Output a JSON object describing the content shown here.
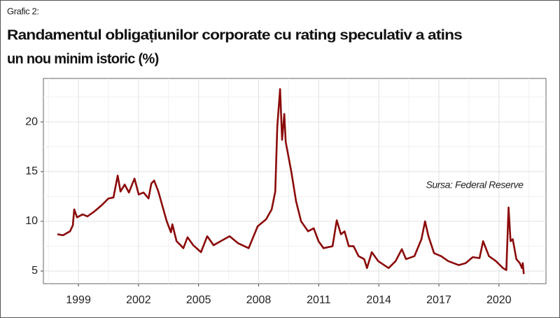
{
  "chart_data": {
    "type": "line",
    "kicker": "Grafic 2:",
    "title_lines": [
      "Randamentul obligațiunilor corporate cu rating speculativ a atins",
      "un nou minim istoric (%)"
    ],
    "annotation": "Sursa: Federal Reserve",
    "xlim": [
      1997.25,
      2022.35
    ],
    "ylim": [
      3.73,
      24.37
    ],
    "xticks": [
      1999,
      2002,
      2005,
      2008,
      2011,
      2014,
      2017,
      2020
    ],
    "minor_xticks": [
      1997.5,
      2000.5,
      2003.5,
      2006.5,
      2009.5,
      2012.5,
      2015.5,
      2018.5,
      2021.5
    ],
    "yticks": [
      5,
      10,
      15,
      20
    ],
    "minor_yticks": [
      7.5,
      12.5,
      17.5,
      22.5
    ],
    "grid": true,
    "series": [
      {
        "color": "#8b0a0a",
        "x": [
          1997.95,
          1998.23,
          1998.58,
          1998.72,
          1998.79,
          1998.93,
          1999.21,
          1999.45,
          1999.8,
          2000.15,
          2000.5,
          2000.75,
          2000.96,
          2001.1,
          2001.31,
          2001.52,
          2001.8,
          2002.01,
          2002.25,
          2002.5,
          2002.64,
          2002.78,
          2002.99,
          2003.2,
          2003.41,
          2003.62,
          2003.69,
          2003.9,
          2004.1,
          2004.24,
          2004.45,
          2004.73,
          2005.12,
          2005.43,
          2005.75,
          2006.1,
          2006.55,
          2006.97,
          2007.5,
          2007.95,
          2008.37,
          2008.65,
          2008.83,
          2008.93,
          2009.07,
          2009.17,
          2009.28,
          2009.35,
          2009.63,
          2009.87,
          2010.12,
          2010.47,
          2010.75,
          2010.99,
          2011.24,
          2011.69,
          2011.9,
          2012.11,
          2012.29,
          2012.5,
          2012.74,
          2012.99,
          2013.27,
          2013.41,
          2013.65,
          2013.97,
          2014.49,
          2014.84,
          2015.15,
          2015.36,
          2015.78,
          2016.13,
          2016.31,
          2016.48,
          2016.76,
          2017.11,
          2017.47,
          2017.99,
          2018.34,
          2018.69,
          2019.03,
          2019.21,
          2019.5,
          2019.85,
          2020.2,
          2020.37,
          2020.48,
          2020.58,
          2020.69,
          2020.87,
          2021.04,
          2021.15,
          2021.19,
          2021.24
        ],
        "values": [
          8.7,
          8.6,
          9.0,
          9.6,
          11.2,
          10.4,
          10.7,
          10.5,
          11.0,
          11.6,
          12.3,
          12.4,
          14.6,
          13.0,
          13.7,
          12.9,
          14.3,
          12.7,
          12.9,
          12.3,
          13.8,
          14.1,
          13.0,
          11.5,
          10.0,
          8.9,
          9.7,
          8.0,
          7.6,
          7.3,
          8.4,
          7.6,
          6.9,
          8.5,
          7.6,
          8.0,
          8.5,
          7.8,
          7.3,
          9.5,
          10.2,
          11.2,
          13.0,
          19.5,
          23.3,
          18.2,
          20.8,
          18.0,
          15.0,
          12.0,
          10.0,
          9.0,
          9.3,
          8.0,
          7.3,
          7.5,
          10.1,
          8.7,
          9.0,
          7.5,
          7.5,
          6.5,
          6.2,
          5.3,
          6.9,
          6.0,
          5.3,
          6.0,
          7.2,
          6.2,
          6.5,
          8.2,
          10.0,
          8.5,
          6.8,
          6.5,
          6.0,
          5.6,
          5.8,
          6.4,
          6.3,
          8.0,
          6.5,
          6.0,
          5.3,
          5.1,
          11.4,
          8.0,
          8.2,
          6.2,
          5.8,
          5.3,
          5.8,
          4.7
        ]
      }
    ]
  }
}
